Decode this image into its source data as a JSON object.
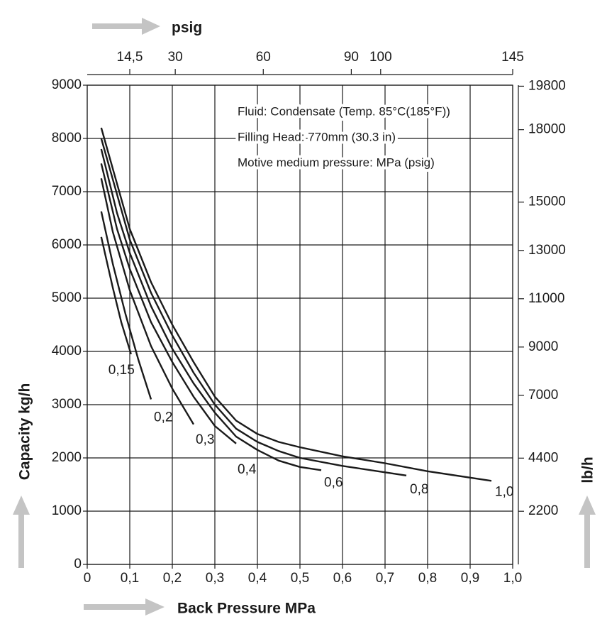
{
  "chart_data": {
    "type": "line",
    "x2label": "psig",
    "xlabel": "Back Pressure MPa",
    "ylabel": "Capacity kg/h",
    "y2label": "lb/h",
    "annotations": [
      "Fluid: Condensate (Temp. 85°C(185°F))",
      "Filling Head: 770mm (30.3 in)",
      "Motive medium pressure: MPa (psig)"
    ],
    "grid": true,
    "xlim": [
      0,
      1
    ],
    "xticks": [
      0,
      {
        "value": 0.1,
        "label": "0,1"
      },
      {
        "value": 0.2,
        "label": "0,2"
      },
      {
        "value": 0.3,
        "label": "0,3"
      },
      {
        "value": 0.4,
        "label": "0,4"
      },
      {
        "value": 0.5,
        "label": "0,5"
      },
      {
        "value": 0.6,
        "label": "0,6"
      },
      {
        "value": 0.7,
        "label": "0,7"
      },
      {
        "value": 0.8,
        "label": "0,8"
      },
      {
        "value": 0.9,
        "label": "0,9"
      },
      {
        "value": 1,
        "label": "1,0"
      }
    ],
    "ylim": [
      0,
      9000
    ],
    "yticks": [
      0,
      1000,
      2000,
      3000,
      4000,
      5000,
      6000,
      7000,
      8000,
      9000
    ],
    "x2lim": [
      0,
      145
    ],
    "x2ticks": [
      {
        "value": 14.5,
        "label": "14,5"
      },
      30,
      60,
      90,
      100,
      145
    ],
    "y2lim": [
      0,
      19842
    ],
    "y2ticks": [
      2200,
      4400,
      7000,
      9000,
      11000,
      13000,
      15000,
      18000,
      19800
    ],
    "series": [
      {
        "name": "0,15",
        "color": "#1a1a1a",
        "x": [
          0.033,
          0.06,
          0.08,
          0.103
        ],
        "values": [
          6150,
          5200,
          4550,
          3950
        ]
      },
      {
        "name": "0,2",
        "color": "#1a1a1a",
        "x": [
          0.033,
          0.06,
          0.09,
          0.12,
          0.15
        ],
        "values": [
          6630,
          5650,
          4700,
          3850,
          3100
        ]
      },
      {
        "name": "0,3",
        "color": "#1a1a1a",
        "x": [
          0.033,
          0.06,
          0.1,
          0.15,
          0.2,
          0.25
        ],
        "values": [
          7250,
          6250,
          5150,
          4100,
          3300,
          2630
        ]
      },
      {
        "name": "0,4",
        "color": "#1a1a1a",
        "x": [
          0.033,
          0.07,
          0.1,
          0.15,
          0.2,
          0.25,
          0.3,
          0.35
        ],
        "values": [
          7530,
          6300,
          5550,
          4550,
          3800,
          3150,
          2600,
          2270
        ]
      },
      {
        "name": "0,6",
        "color": "#1a1a1a",
        "x": [
          0.033,
          0.07,
          0.1,
          0.15,
          0.2,
          0.25,
          0.3,
          0.35,
          0.4,
          0.45,
          0.5,
          0.55
        ],
        "values": [
          7800,
          6600,
          5850,
          4850,
          4050,
          3400,
          2850,
          2400,
          2150,
          1950,
          1830,
          1770
        ]
      },
      {
        "name": "0,8",
        "color": "#1a1a1a",
        "x": [
          0.033,
          0.1,
          0.15,
          0.2,
          0.25,
          0.3,
          0.35,
          0.4,
          0.45,
          0.5,
          0.6,
          0.7,
          0.75
        ],
        "values": [
          8000,
          6100,
          5100,
          4300,
          3600,
          3000,
          2550,
          2300,
          2130,
          2000,
          1850,
          1730,
          1670
        ]
      },
      {
        "name": "1,0",
        "color": "#1a1a1a",
        "x": [
          0.033,
          0.1,
          0.15,
          0.2,
          0.25,
          0.3,
          0.35,
          0.4,
          0.45,
          0.5,
          0.6,
          0.7,
          0.8,
          0.9,
          0.95
        ],
        "values": [
          8200,
          6300,
          5300,
          4500,
          3800,
          3150,
          2700,
          2450,
          2300,
          2200,
          2030,
          1900,
          1750,
          1630,
          1570
        ]
      }
    ]
  }
}
